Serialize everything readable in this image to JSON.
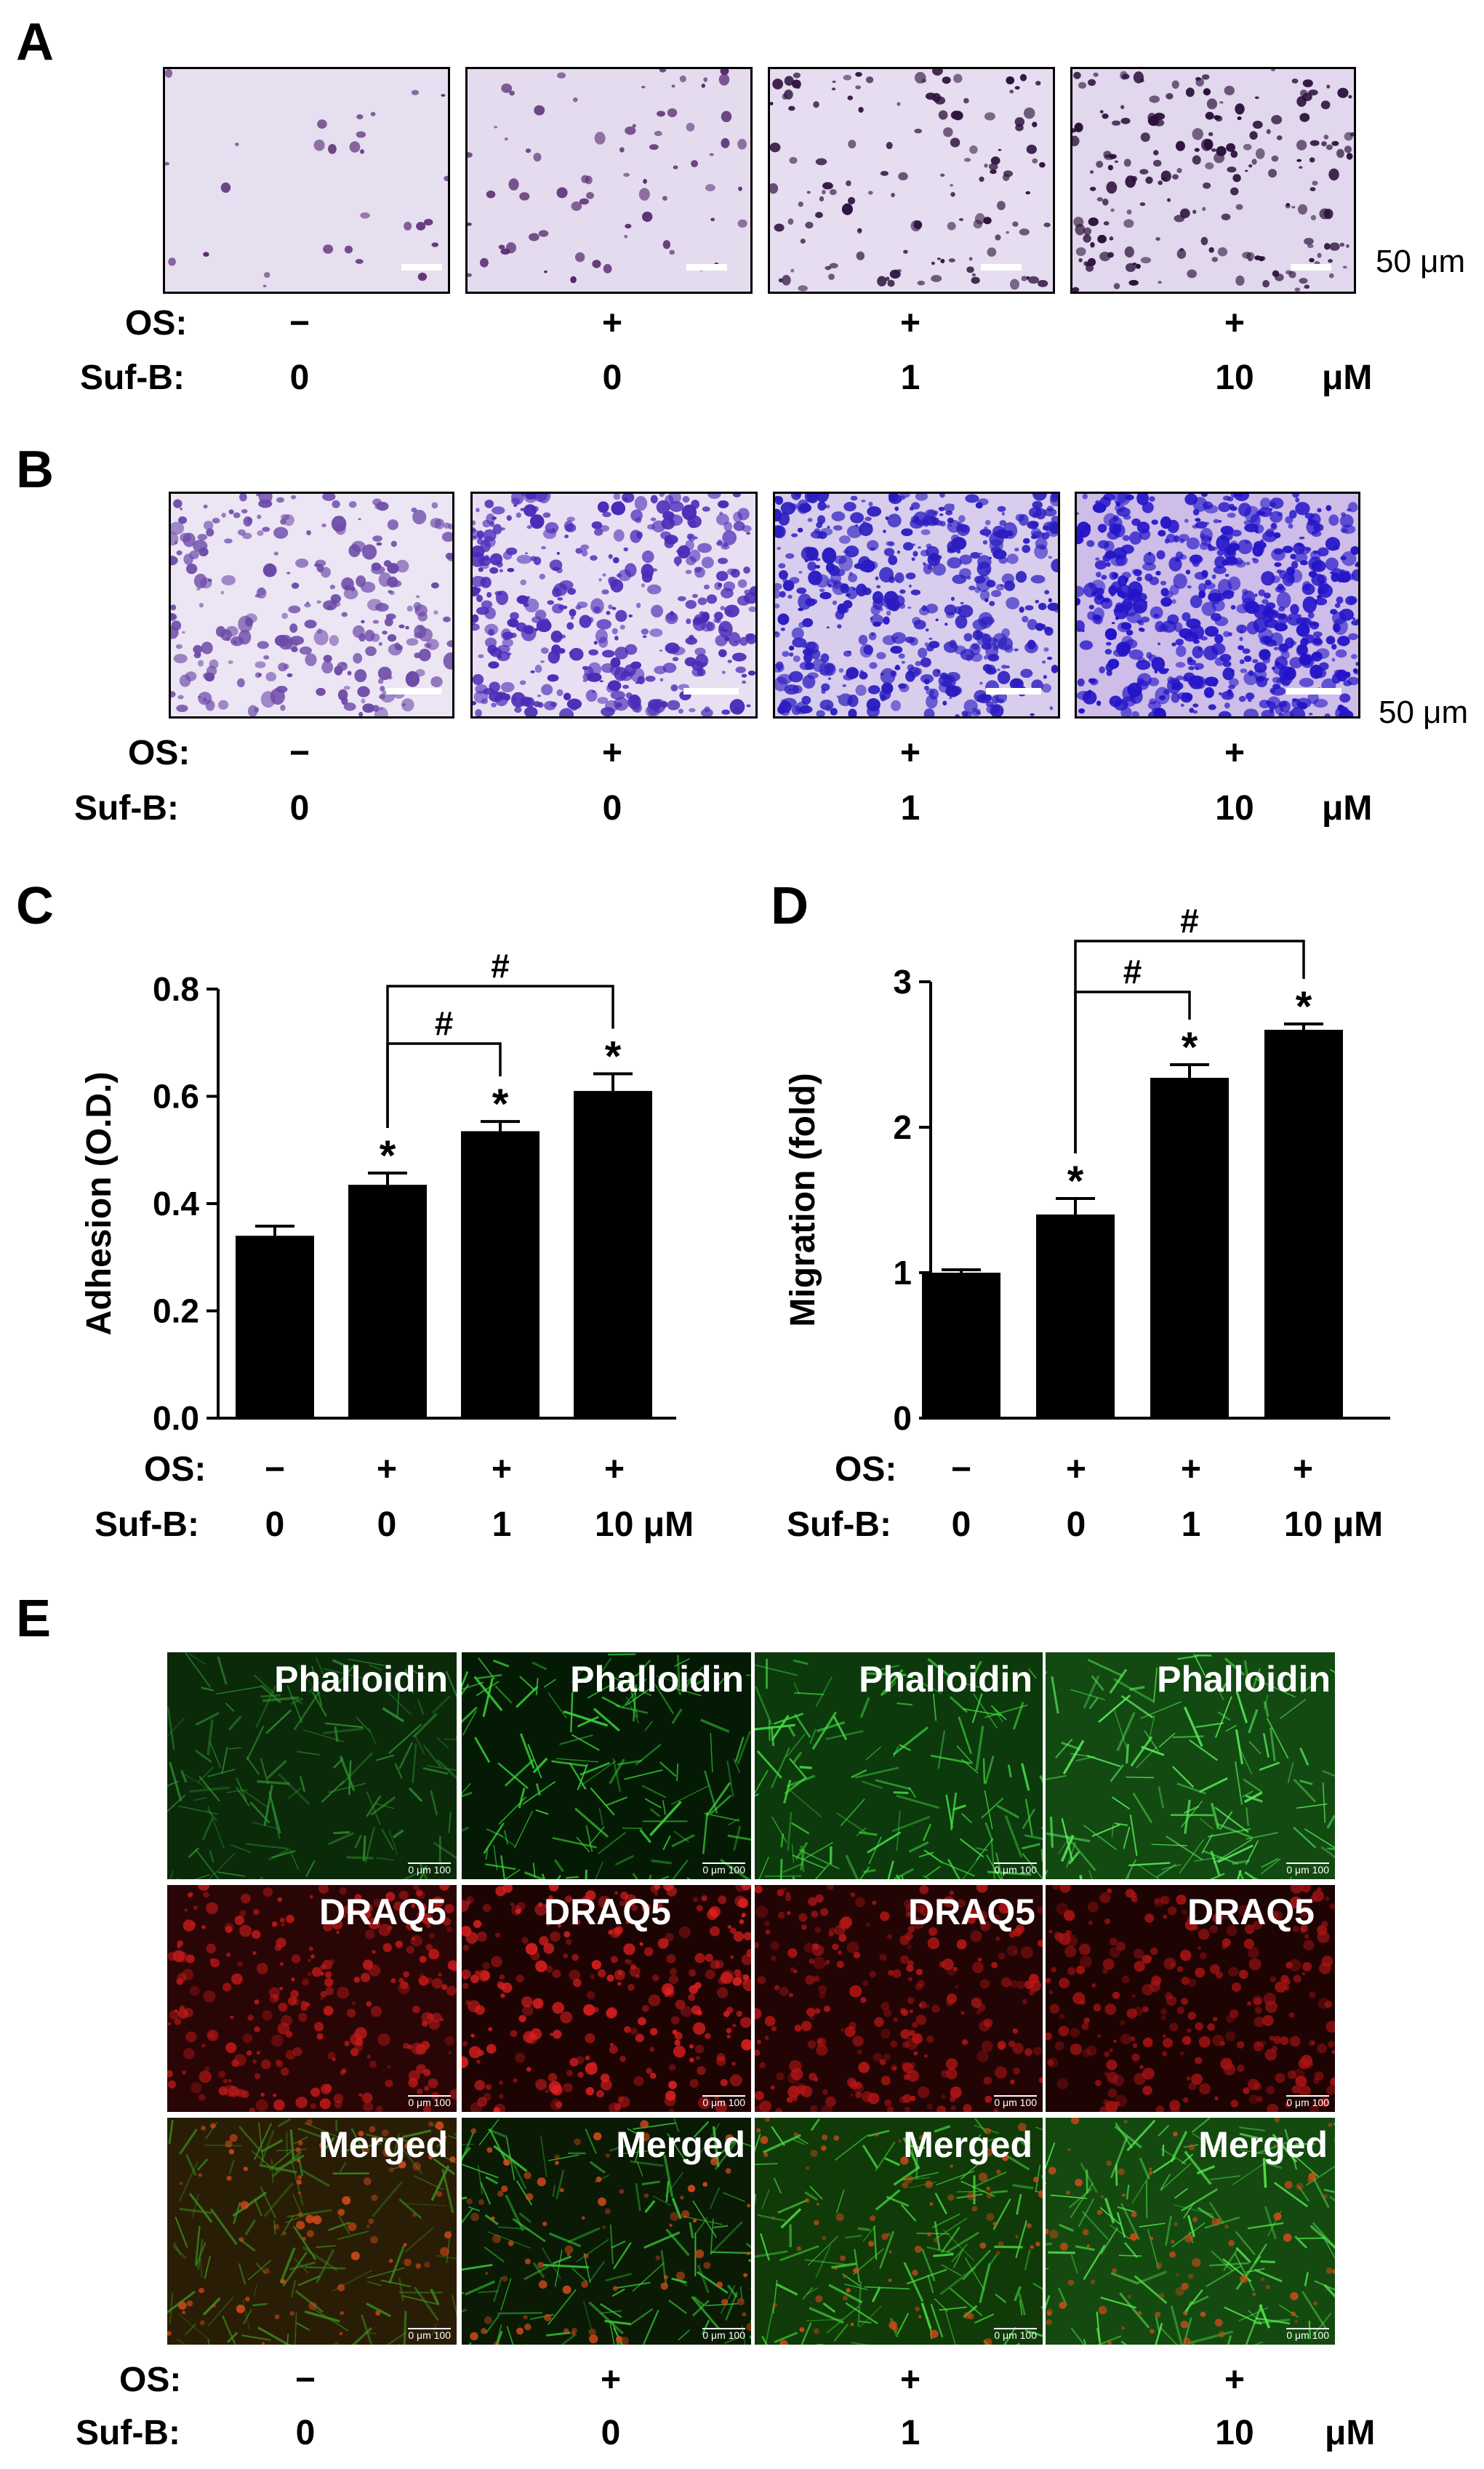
{
  "panels": {
    "A": {
      "letter": "A",
      "scale_text": "50 μm",
      "os_label": "OS:",
      "sufb_label": "Suf-B:",
      "os_values": [
        "−",
        "+",
        "+",
        "+"
      ],
      "sufb_values": [
        "0",
        "0",
        "1",
        "10"
      ],
      "unit": "μM"
    },
    "B": {
      "letter": "B",
      "scale_text": "50 μm",
      "os_label": "OS:",
      "sufb_label": "Suf-B:",
      "os_values": [
        "−",
        "+",
        "+",
        "+"
      ],
      "sufb_values": [
        "0",
        "0",
        "1",
        "10"
      ],
      "unit": "μM"
    },
    "C": {
      "letter": "C",
      "os_label": "OS:",
      "sufb_label": "Suf-B:",
      "os_values": [
        "−",
        "+",
        "+",
        "+"
      ],
      "sufb_values": [
        "0",
        "0",
        "1",
        "10 μM"
      ]
    },
    "D": {
      "letter": "D",
      "os_label": "OS:",
      "sufb_label": "Suf-B:",
      "os_values": [
        "−",
        "+",
        "+",
        "+"
      ],
      "sufb_values": [
        "0",
        "0",
        "1",
        "10 μM"
      ]
    },
    "E": {
      "letter": "E",
      "rows": [
        "Phalloidin",
        "DRAQ5",
        "Merged"
      ],
      "scale_text": "0   μm   100",
      "os_label": "OS:",
      "sufb_label": "Suf-B:",
      "os_values": [
        "−",
        "+",
        "+",
        "+"
      ],
      "sufb_values": [
        "0",
        "0",
        "1",
        "10"
      ],
      "unit": "μM"
    }
  },
  "chart_data": [
    {
      "id": "C",
      "type": "bar",
      "ylabel": "Adhesion (O.D.)",
      "ylim": [
        0.0,
        0.8
      ],
      "yticks": [
        "0.0",
        "0.2",
        "0.4",
        "0.6",
        "0.8"
      ],
      "categories": [
        "OS − / Suf-B 0",
        "OS + / Suf-B 0",
        "OS + / Suf-B 1",
        "OS + / Suf-B 10"
      ],
      "values": [
        0.34,
        0.435,
        0.535,
        0.61
      ],
      "errors": [
        0.018,
        0.022,
        0.018,
        0.032
      ],
      "star_marks": [
        "",
        "*",
        "*",
        "*"
      ],
      "comparisons": [
        {
          "from": 1,
          "to": 2,
          "mark": "#"
        },
        {
          "from": 1,
          "to": 3,
          "mark": "#"
        }
      ],
      "colors": {
        "bar": "#000000"
      }
    },
    {
      "id": "D",
      "type": "bar",
      "ylabel": "Migration (fold)",
      "ylim": [
        0,
        3
      ],
      "yticks": [
        "0",
        "1",
        "2",
        "3"
      ],
      "categories": [
        "OS − / Suf-B 0",
        "OS + / Suf-B 0",
        "OS + / Suf-B 1",
        "OS + / Suf-B 10"
      ],
      "values": [
        1.0,
        1.4,
        2.34,
        2.67
      ],
      "errors": [
        0.02,
        0.11,
        0.09,
        0.04
      ],
      "star_marks": [
        "",
        "*",
        "*",
        "*"
      ],
      "comparisons": [
        {
          "from": 1,
          "to": 2,
          "mark": "#"
        },
        {
          "from": 1,
          "to": 3,
          "mark": "#"
        }
      ],
      "colors": {
        "bar": "#000000"
      }
    }
  ]
}
